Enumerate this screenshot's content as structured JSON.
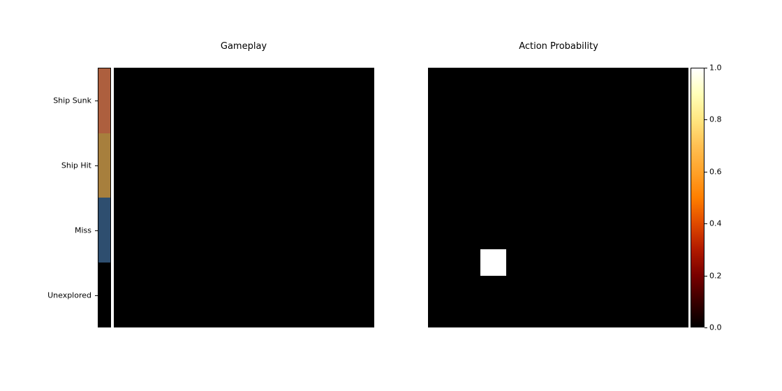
{
  "titles": {
    "gameplay": "Gameplay",
    "probability": "Action Probability"
  },
  "legend": {
    "items": [
      {
        "label": "Ship Sunk",
        "color": "#ad5f3e"
      },
      {
        "label": "Ship Hit",
        "color": "#a77f3d"
      },
      {
        "label": "Miss",
        "color": "#2e4e6f"
      },
      {
        "label": "Unexplored",
        "color": "#000000"
      }
    ]
  },
  "board": {
    "rows": 10,
    "cols": 10,
    "state": "all-unexplored",
    "color": "#000000"
  },
  "probability": {
    "rows": 10,
    "cols": 10,
    "max_cell": {
      "row": 7,
      "col": 2,
      "value": 1.0
    }
  },
  "colorbar": {
    "ticks": [
      "0.0",
      "0.2",
      "0.4",
      "0.6",
      "0.8",
      "1.0"
    ],
    "range": [
      0.0,
      1.0
    ],
    "colormap": "afmhot"
  }
}
